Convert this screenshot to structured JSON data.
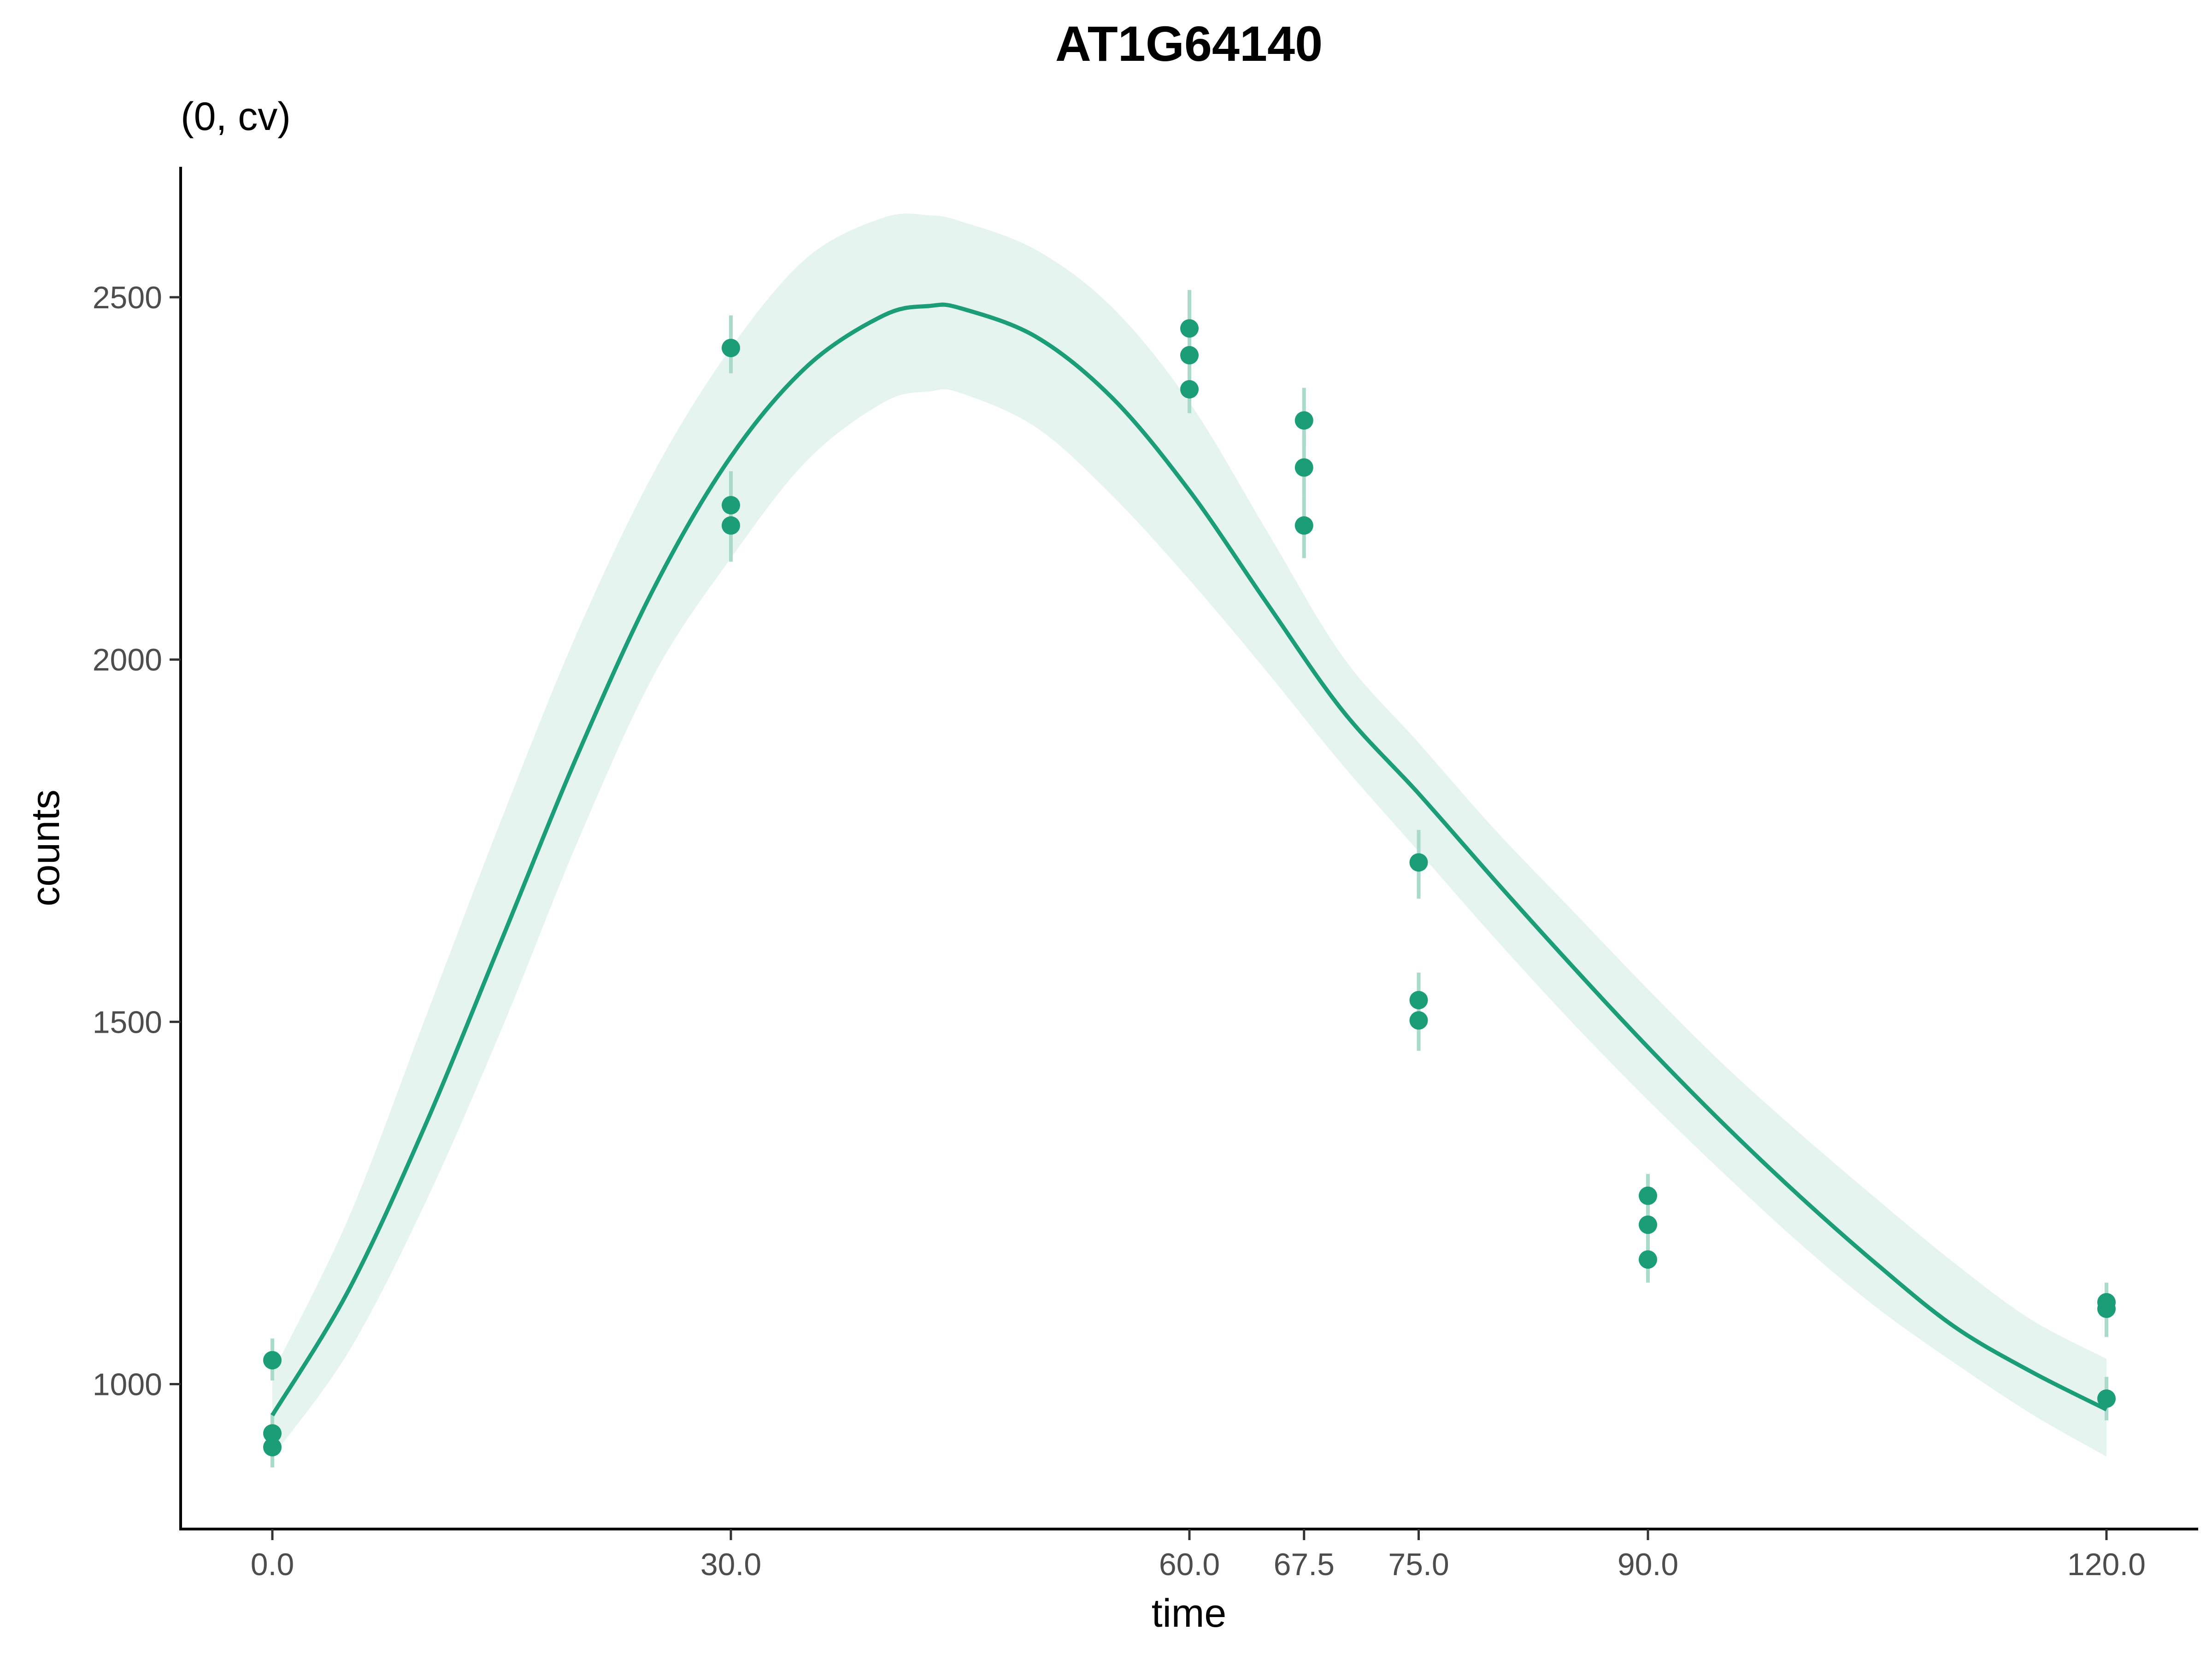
{
  "chart_data": {
    "type": "scatter",
    "title": "AT1G64140",
    "subtitle": "(0, cv)",
    "xlabel": "time",
    "ylabel": "counts",
    "xlim": [
      -6,
      126
    ],
    "ylim": [
      800,
      2680
    ],
    "x_ticks": [
      0,
      30,
      60,
      67.5,
      75,
      90,
      120
    ],
    "x_tick_labels": [
      "0.0",
      "30.0",
      "60.0",
      "67.5",
      "75.0",
      "90.0",
      "120.0"
    ],
    "y_ticks": [
      1000,
      1500,
      2000,
      2500
    ],
    "y_tick_labels": [
      "1000",
      "1500",
      "2000",
      "2500"
    ],
    "grid": false,
    "legend": "none",
    "colors": {
      "points": "#1b9e77",
      "line": "#1b9e77",
      "band": "#e6f4ef",
      "errorbar": "#a9dacb",
      "axis": "#000000"
    },
    "points": [
      {
        "x": 0,
        "y": 1033,
        "lo": 1005,
        "hi": 1063
      },
      {
        "x": 0,
        "y": 932,
        "lo": 905,
        "hi": 960
      },
      {
        "x": 0,
        "y": 913,
        "lo": 885,
        "hi": 940
      },
      {
        "x": 30,
        "y": 2430,
        "lo": 2395,
        "hi": 2475
      },
      {
        "x": 30,
        "y": 2213,
        "lo": 2180,
        "hi": 2260
      },
      {
        "x": 30,
        "y": 2185,
        "lo": 2135,
        "hi": 2225
      },
      {
        "x": 60,
        "y": 2457,
        "lo": 2420,
        "hi": 2510
      },
      {
        "x": 60,
        "y": 2420,
        "lo": 2385,
        "hi": 2460
      },
      {
        "x": 60,
        "y": 2373,
        "lo": 2340,
        "hi": 2415
      },
      {
        "x": 67.5,
        "y": 2330,
        "lo": 2295,
        "hi": 2375
      },
      {
        "x": 67.5,
        "y": 2265,
        "lo": 2225,
        "hi": 2310
      },
      {
        "x": 67.5,
        "y": 2185,
        "lo": 2140,
        "hi": 2225
      },
      {
        "x": 75,
        "y": 1720,
        "lo": 1670,
        "hi": 1765
      },
      {
        "x": 75,
        "y": 1530,
        "lo": 1495,
        "hi": 1568
      },
      {
        "x": 75,
        "y": 1502,
        "lo": 1460,
        "hi": 1540
      },
      {
        "x": 90,
        "y": 1260,
        "lo": 1230,
        "hi": 1290
      },
      {
        "x": 90,
        "y": 1220,
        "lo": 1190,
        "hi": 1250
      },
      {
        "x": 90,
        "y": 1172,
        "lo": 1140,
        "hi": 1205
      },
      {
        "x": 120,
        "y": 1113,
        "lo": 1085,
        "hi": 1140
      },
      {
        "x": 120,
        "y": 1104,
        "lo": 1065,
        "hi": 1130
      },
      {
        "x": 120,
        "y": 980,
        "lo": 950,
        "hi": 1010
      }
    ],
    "fit": {
      "x": [
        0,
        5,
        10,
        15,
        20,
        25,
        30,
        35,
        40,
        43,
        45,
        50,
        55,
        60,
        65,
        70,
        75,
        80,
        85,
        90,
        95,
        100,
        105,
        110,
        115,
        120
      ],
      "y": [
        957,
        1130,
        1357,
        1613,
        1870,
        2100,
        2280,
        2405,
        2475,
        2488,
        2485,
        2445,
        2360,
        2233,
        2080,
        1930,
        1815,
        1695,
        1578,
        1465,
        1358,
        1258,
        1165,
        1080,
        1018,
        965
      ],
      "lower": [
        900,
        1045,
        1250,
        1490,
        1750,
        1980,
        2140,
        2275,
        2355,
        2370,
        2368,
        2320,
        2225,
        2110,
        1985,
        1855,
        1735,
        1615,
        1500,
        1392,
        1290,
        1193,
        1105,
        1030,
        960,
        900
      ],
      "upper": [
        1015,
        1230,
        1505,
        1780,
        2040,
        2260,
        2430,
        2555,
        2610,
        2613,
        2605,
        2565,
        2485,
        2355,
        2180,
        2005,
        1885,
        1765,
        1655,
        1545,
        1440,
        1345,
        1255,
        1168,
        1090,
        1035
      ]
    }
  }
}
